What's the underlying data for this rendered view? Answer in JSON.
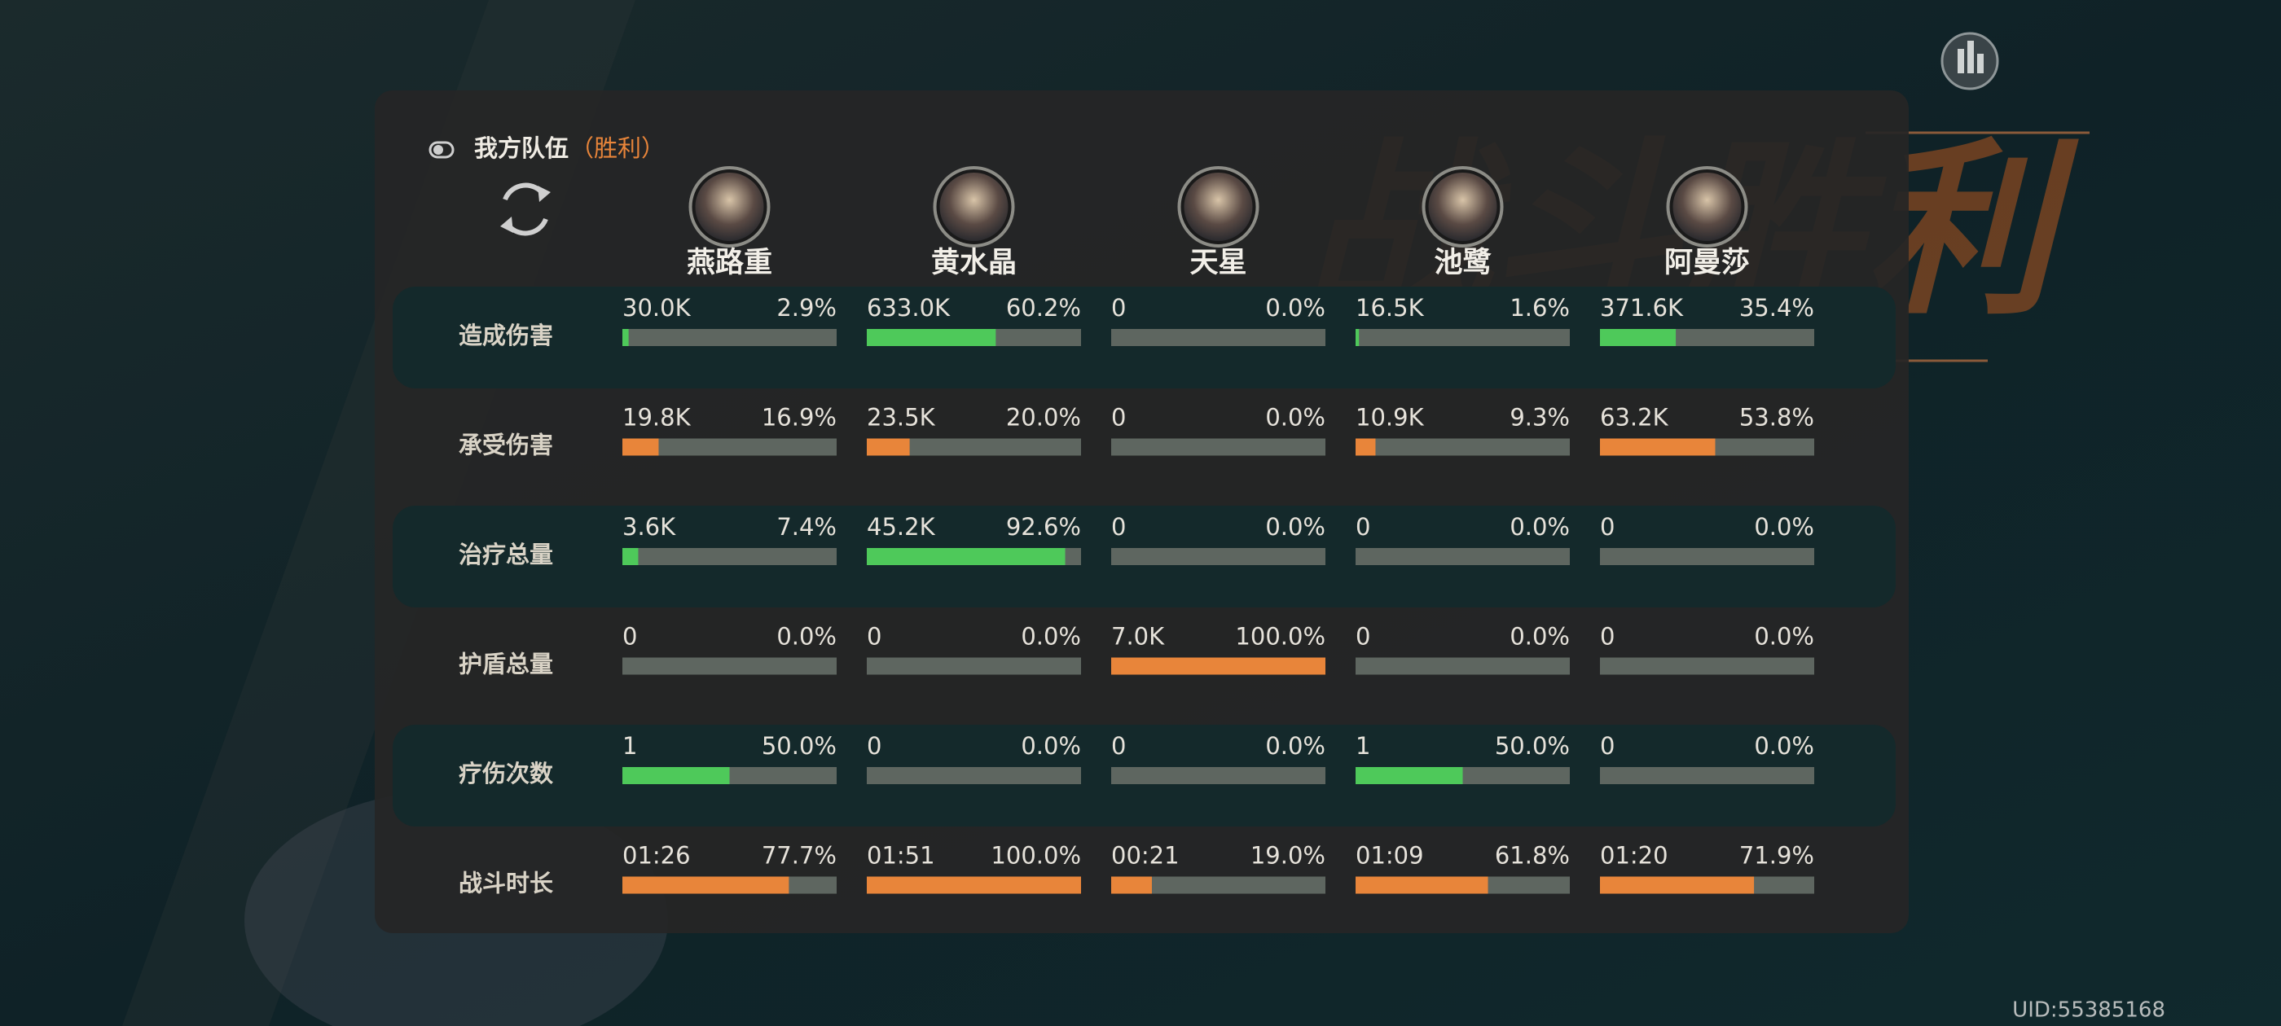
{
  "header": {
    "title": "我方队伍",
    "result": "（胜利）"
  },
  "banner": "战斗胜利",
  "characters": [
    "燕路重",
    "黄水晶",
    "天星",
    "池鹭",
    "阿曼莎"
  ],
  "rows": [
    {
      "label": "造成伤害",
      "color": "#4ec95a",
      "cells": [
        {
          "value": "30.0K",
          "percent": {
            "value": 2.9,
            "label": "2.9%"
          }
        },
        {
          "value": "633.0K",
          "percent": {
            "value": 60.2,
            "label": "60.2%"
          }
        },
        {
          "value": "0",
          "percent": {
            "value": 0,
            "label": "0.0%"
          }
        },
        {
          "value": "16.5K",
          "percent": {
            "value": 1.6,
            "label": "1.6%"
          }
        },
        {
          "value": "371.6K",
          "percent": {
            "value": 35.4,
            "label": "35.4%"
          }
        }
      ]
    },
    {
      "label": "承受伤害",
      "color": "#e8853a",
      "cells": [
        {
          "value": "19.8K",
          "percent": {
            "value": 16.9,
            "label": "16.9%"
          }
        },
        {
          "value": "23.5K",
          "percent": {
            "value": 20,
            "label": "20.0%"
          }
        },
        {
          "value": "0",
          "percent": {
            "value": 0,
            "label": "0.0%"
          }
        },
        {
          "value": "10.9K",
          "percent": {
            "value": 9.3,
            "label": "9.3%"
          }
        },
        {
          "value": "63.2K",
          "percent": {
            "value": 53.8,
            "label": "53.8%"
          }
        }
      ]
    },
    {
      "label": "治疗总量",
      "color": "#4ec95a",
      "cells": [
        {
          "value": "3.6K",
          "percent": {
            "value": 7.4,
            "label": "7.4%"
          }
        },
        {
          "value": "45.2K",
          "percent": {
            "value": 92.6,
            "label": "92.6%"
          }
        },
        {
          "value": "0",
          "percent": {
            "value": 0,
            "label": "0.0%"
          }
        },
        {
          "value": "0",
          "percent": {
            "value": 0,
            "label": "0.0%"
          }
        },
        {
          "value": "0",
          "percent": {
            "value": 0,
            "label": "0.0%"
          }
        }
      ]
    },
    {
      "label": "护盾总量",
      "color": "#e8853a",
      "cells": [
        {
          "value": "0",
          "percent": {
            "value": 0,
            "label": "0.0%"
          }
        },
        {
          "value": "0",
          "percent": {
            "value": 0,
            "label": "0.0%"
          }
        },
        {
          "value": "7.0K",
          "percent": {
            "value": 100,
            "label": "100.0%"
          }
        },
        {
          "value": "0",
          "percent": {
            "value": 0,
            "label": "0.0%"
          }
        },
        {
          "value": "0",
          "percent": {
            "value": 0,
            "label": "0.0%"
          }
        }
      ]
    },
    {
      "label": "疗伤次数",
      "color": "#4ec95a",
      "cells": [
        {
          "value": "1",
          "percent": {
            "value": 50,
            "label": "50.0%"
          }
        },
        {
          "value": "0",
          "percent": {
            "value": 0,
            "label": "0.0%"
          }
        },
        {
          "value": "0",
          "percent": {
            "value": 0,
            "label": "0.0%"
          }
        },
        {
          "value": "1",
          "percent": {
            "value": 50,
            "label": "50.0%"
          }
        },
        {
          "value": "0",
          "percent": {
            "value": 0,
            "label": "0.0%"
          }
        }
      ]
    },
    {
      "label": "战斗时长",
      "color": "#e8853a",
      "cells": [
        {
          "value": "01:26",
          "percent": {
            "value": 77.7,
            "label": "77.7%"
          }
        },
        {
          "value": "01:51",
          "percent": {
            "value": 100,
            "label": "100.0%"
          }
        },
        {
          "value": "00:21",
          "percent": {
            "value": 19,
            "label": "19.0%"
          }
        },
        {
          "value": "01:09",
          "percent": {
            "value": 61.8,
            "label": "61.8%"
          }
        },
        {
          "value": "01:20",
          "percent": {
            "value": 71.9,
            "label": "71.9%"
          }
        }
      ]
    }
  ],
  "uid": "UID:55385168"
}
